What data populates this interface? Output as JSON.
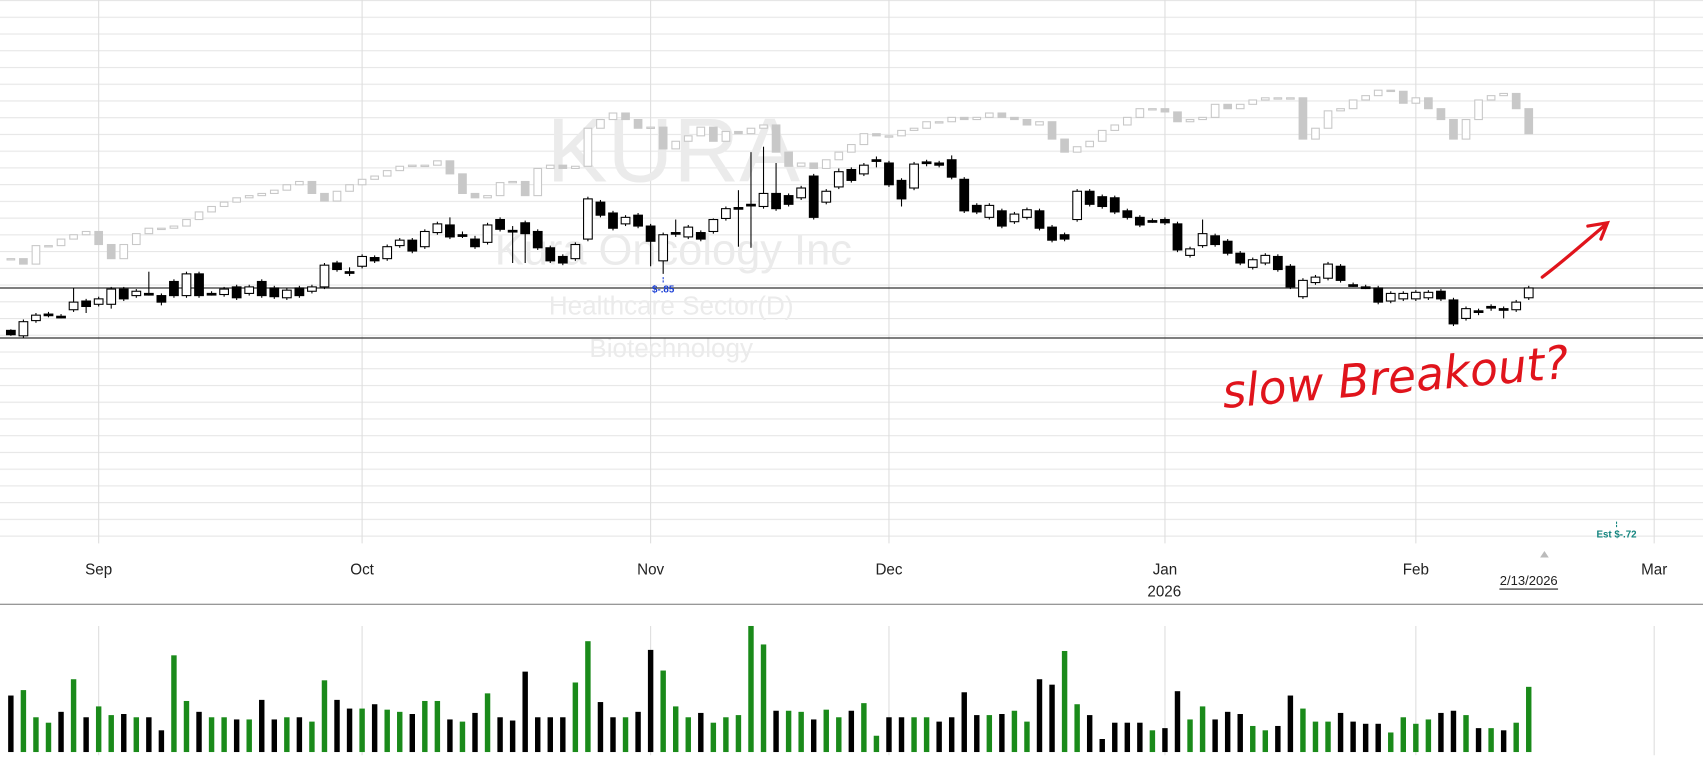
{
  "chart_data": {
    "type": "candlestick",
    "title": "KURA",
    "subtitle": "Kura Oncology Inc",
    "sector": "Healthcare Sector(D)",
    "industry": "Biotechnology",
    "x_year": "2026",
    "xticks": [
      {
        "value": 7,
        "label": "Sep"
      },
      {
        "value": 28,
        "label": "Oct"
      },
      {
        "value": 51,
        "label": "Nov"
      },
      {
        "value": 70,
        "label": "Dec"
      },
      {
        "value": 92,
        "label": "Jan"
      },
      {
        "value": 112,
        "label": "Feb"
      },
      {
        "value": 131,
        "label": "Mar"
      }
    ],
    "date_label": {
      "text": "2/13/2026",
      "x": 121
    },
    "annotations": [
      {
        "text": "$-.85",
        "x": 52
      },
      {
        "text": "Est $-.72",
        "x": 128
      }
    ],
    "note": "slow Breakout?",
    "levels": [
      13.5,
      8.9
    ],
    "up_color": "#ffffff",
    "down_color": "#000000",
    "values": [
      [
        9.6,
        9.7,
        9.1,
        9.2
      ],
      [
        9.1,
        10.6,
        8.9,
        10.4
      ],
      [
        10.5,
        11.2,
        10.3,
        11.0
      ],
      [
        11.1,
        11.3,
        10.8,
        11.0
      ],
      [
        10.9,
        11.1,
        10.7,
        10.9
      ],
      [
        11.5,
        13.5,
        11.3,
        12.2
      ],
      [
        12.3,
        12.5,
        11.2,
        11.8
      ],
      [
        12.0,
        12.7,
        11.8,
        12.5
      ],
      [
        12.0,
        13.6,
        11.6,
        13.4
      ],
      [
        13.4,
        13.6,
        12.3,
        12.5
      ],
      [
        12.8,
        13.4,
        12.6,
        13.2
      ],
      [
        13.0,
        15.0,
        12.8,
        13.0
      ],
      [
        12.8,
        13.0,
        11.9,
        12.2
      ],
      [
        14.1,
        14.3,
        12.6,
        12.8
      ],
      [
        12.8,
        15.0,
        12.6,
        14.8
      ],
      [
        14.8,
        15.0,
        12.6,
        12.8
      ],
      [
        13.0,
        13.2,
        12.8,
        13.0
      ],
      [
        12.9,
        13.6,
        12.7,
        13.4
      ],
      [
        13.6,
        13.8,
        12.4,
        12.6
      ],
      [
        13.0,
        13.8,
        12.8,
        13.6
      ],
      [
        14.1,
        14.3,
        12.6,
        12.8
      ],
      [
        13.5,
        13.7,
        12.5,
        12.7
      ],
      [
        12.6,
        13.5,
        12.4,
        13.3
      ],
      [
        13.5,
        13.7,
        12.6,
        12.8
      ],
      [
        13.2,
        13.8,
        13.0,
        13.6
      ],
      [
        13.6,
        15.8,
        13.4,
        15.6
      ],
      [
        15.8,
        16.0,
        15.0,
        15.2
      ],
      [
        15.0,
        15.4,
        14.6,
        15.0
      ],
      [
        15.5,
        16.6,
        15.3,
        16.4
      ],
      [
        16.3,
        16.5,
        15.8,
        16.0
      ],
      [
        16.2,
        17.5,
        16.0,
        17.3
      ],
      [
        17.4,
        18.1,
        17.2,
        17.9
      ],
      [
        17.9,
        18.1,
        16.7,
        16.9
      ],
      [
        17.3,
        18.9,
        17.1,
        18.7
      ],
      [
        18.6,
        19.6,
        18.4,
        19.4
      ],
      [
        19.3,
        20.0,
        18.0,
        18.2
      ],
      [
        18.4,
        18.7,
        18.1,
        18.4
      ],
      [
        18.0,
        18.3,
        17.1,
        17.3
      ],
      [
        17.7,
        19.5,
        17.5,
        19.3
      ],
      [
        19.8,
        20.0,
        18.7,
        18.9
      ],
      [
        18.8,
        19.2,
        15.8,
        18.8
      ],
      [
        19.5,
        19.7,
        15.8,
        18.5
      ],
      [
        18.7,
        18.9,
        17.0,
        17.2
      ],
      [
        17.2,
        17.4,
        15.8,
        16.0
      ],
      [
        16.4,
        16.6,
        15.6,
        15.8
      ],
      [
        16.2,
        17.7,
        16.0,
        17.5
      ],
      [
        18.0,
        21.9,
        17.8,
        21.7
      ],
      [
        21.4,
        21.6,
        20.0,
        20.2
      ],
      [
        20.4,
        20.6,
        18.8,
        19.0
      ],
      [
        19.4,
        20.2,
        19.2,
        20.0
      ],
      [
        20.2,
        20.4,
        19.0,
        19.2
      ],
      [
        19.2,
        19.4,
        15.5,
        17.8
      ],
      [
        16.0,
        18.6,
        14.8,
        18.4
      ],
      [
        18.6,
        19.8,
        18.2,
        18.6
      ],
      [
        18.2,
        19.3,
        18.0,
        19.1
      ],
      [
        18.6,
        18.8,
        17.8,
        18.0
      ],
      [
        18.7,
        19.9,
        18.5,
        19.8
      ],
      [
        19.9,
        21.0,
        19.7,
        20.8
      ],
      [
        20.9,
        22.5,
        17.3,
        20.9
      ],
      [
        21.2,
        26.0,
        17.2,
        21.2
      ],
      [
        21.0,
        26.5,
        20.8,
        22.2
      ],
      [
        22.2,
        25.0,
        20.6,
        20.8
      ],
      [
        22.0,
        22.2,
        21.0,
        21.2
      ],
      [
        21.8,
        22.9,
        21.6,
        22.7
      ],
      [
        23.8,
        24.0,
        19.8,
        20.0
      ],
      [
        21.4,
        22.6,
        21.2,
        22.4
      ],
      [
        22.8,
        24.5,
        22.6,
        24.2
      ],
      [
        24.4,
        24.6,
        23.2,
        23.4
      ],
      [
        24.0,
        25.0,
        23.8,
        24.8
      ],
      [
        25.3,
        25.6,
        24.6,
        25.3
      ],
      [
        25.0,
        25.2,
        22.8,
        23.0
      ],
      [
        23.4,
        23.6,
        21.0,
        21.7
      ],
      [
        22.7,
        25.1,
        22.5,
        24.9
      ],
      [
        25.1,
        25.3,
        24.7,
        25.1
      ],
      [
        25.0,
        25.2,
        24.6,
        24.8
      ],
      [
        25.3,
        25.7,
        23.5,
        23.7
      ],
      [
        23.5,
        23.7,
        20.4,
        20.6
      ],
      [
        21.1,
        21.3,
        20.3,
        20.5
      ],
      [
        20.0,
        21.3,
        19.8,
        21.1
      ],
      [
        20.6,
        20.8,
        19.0,
        19.2
      ],
      [
        19.6,
        20.5,
        19.4,
        20.3
      ],
      [
        20.0,
        20.9,
        19.8,
        20.7
      ],
      [
        20.6,
        20.8,
        18.8,
        19.0
      ],
      [
        19.1,
        19.3,
        17.7,
        17.9
      ],
      [
        18.4,
        18.6,
        17.8,
        18.0
      ],
      [
        19.8,
        22.6,
        19.6,
        22.4
      ],
      [
        22.4,
        22.6,
        21.0,
        21.2
      ],
      [
        21.9,
        22.1,
        20.8,
        21.0
      ],
      [
        21.8,
        22.0,
        20.3,
        20.5
      ],
      [
        20.6,
        20.8,
        19.8,
        20.0
      ],
      [
        20.0,
        20.2,
        19.1,
        19.3
      ],
      [
        19.7,
        19.9,
        19.5,
        19.7
      ],
      [
        19.8,
        20.0,
        19.3,
        19.5
      ],
      [
        19.4,
        19.6,
        16.8,
        17.0
      ],
      [
        16.5,
        17.3,
        16.3,
        17.1
      ],
      [
        17.4,
        19.8,
        17.2,
        18.5
      ],
      [
        18.3,
        18.5,
        17.3,
        17.5
      ],
      [
        17.8,
        18.0,
        16.5,
        16.7
      ],
      [
        16.7,
        16.9,
        15.6,
        15.8
      ],
      [
        15.4,
        16.3,
        15.2,
        16.1
      ],
      [
        15.8,
        16.7,
        15.6,
        16.5
      ],
      [
        16.4,
        16.6,
        15.0,
        15.2
      ],
      [
        15.5,
        15.7,
        13.4,
        13.6
      ],
      [
        12.7,
        14.4,
        12.5,
        14.2
      ],
      [
        14.0,
        14.7,
        13.8,
        14.5
      ],
      [
        14.4,
        15.9,
        14.2,
        15.7
      ],
      [
        15.5,
        15.7,
        14.0,
        14.2
      ],
      [
        13.8,
        14.0,
        13.6,
        13.8
      ],
      [
        13.6,
        13.8,
        13.4,
        13.6
      ],
      [
        13.5,
        13.7,
        12.0,
        12.2
      ],
      [
        12.3,
        13.2,
        12.1,
        13.0
      ],
      [
        12.5,
        13.2,
        12.3,
        13.0
      ],
      [
        12.5,
        13.3,
        12.3,
        13.1
      ],
      [
        12.6,
        13.3,
        12.4,
        13.1
      ],
      [
        13.2,
        13.4,
        12.3,
        12.5
      ],
      [
        12.4,
        12.6,
        10.0,
        10.2
      ],
      [
        10.7,
        11.8,
        10.5,
        11.6
      ],
      [
        11.4,
        11.6,
        11.0,
        11.4
      ],
      [
        11.8,
        12.0,
        11.4,
        11.8
      ],
      [
        11.6,
        11.8,
        10.7,
        11.6
      ],
      [
        11.5,
        12.4,
        11.3,
        12.2
      ],
      [
        12.6,
        13.7,
        12.4,
        13.5
      ]
    ],
    "overlay": {
      "color": "#c8c8c8",
      "values": [
        16.2,
        15.7,
        17.4,
        17.4,
        18.0,
        18.4,
        18.7,
        17.5,
        16.2,
        17.5,
        18.5,
        19.0,
        19.0,
        19.2,
        19.8,
        20.5,
        21.0,
        21.4,
        21.8,
        22.0,
        22.2,
        22.5,
        23.0,
        23.3,
        22.2,
        21.5,
        22.4,
        23.0,
        23.5,
        23.8,
        24.3,
        24.7,
        24.8,
        24.8,
        25.2,
        24.0,
        22.2,
        21.8,
        22.0,
        23.2,
        23.3,
        22.0,
        24.5,
        24.8,
        24.5,
        24.7,
        28.2,
        29.0,
        29.6,
        29.0,
        28.2,
        28.3,
        26.3,
        27.0,
        27.5,
        28.3,
        27.0,
        27.9,
        27.7,
        28.2,
        28.5,
        26.0,
        24.7,
        25.0,
        24.5,
        25.3,
        26.0,
        26.7,
        27.7,
        27.5,
        27.5,
        28.0,
        28.2,
        28.8,
        28.8,
        29.2,
        29.0,
        29.2,
        29.6,
        29.2,
        29.0,
        28.5,
        28.8,
        27.2,
        26.0,
        26.5,
        27.0,
        28.0,
        28.5,
        29.2,
        30.0,
        30.0,
        29.7,
        28.8,
        29.0,
        29.2,
        30.4,
        30.0,
        30.4,
        30.8,
        31.0,
        31.0,
        31.0,
        27.2,
        28.2,
        29.8,
        30.0,
        30.8,
        31.2,
        31.7,
        31.6,
        30.5,
        31.0,
        30.0,
        29.0,
        27.2,
        29.0,
        30.8,
        31.2,
        31.4,
        30.0,
        27.7
      ]
    },
    "volume": {
      "up_color": "#1a8a1a",
      "down_color": "#000000",
      "values": [
        52,
        57,
        32,
        27,
        37,
        67,
        32,
        42,
        34,
        35,
        32,
        32,
        20,
        89,
        47,
        37,
        32,
        32,
        30,
        30,
        48,
        30,
        32,
        32,
        28,
        66,
        48,
        40,
        40,
        44,
        39,
        37,
        35,
        47,
        47,
        30,
        28,
        36,
        54,
        32,
        29,
        74,
        32,
        32,
        32,
        64,
        102,
        46,
        32,
        32,
        37,
        94,
        75,
        42,
        32,
        36,
        27,
        32,
        34,
        116,
        99,
        38,
        38,
        37,
        30,
        39,
        32,
        38,
        45,
        15,
        32,
        32,
        32,
        32,
        28,
        32,
        55,
        34,
        34,
        35,
        38,
        28,
        67,
        62,
        93,
        44,
        34,
        12,
        27,
        27,
        27,
        20,
        22,
        56,
        30,
        42,
        30,
        37,
        35,
        24,
        20,
        24,
        52,
        40,
        28,
        28,
        36,
        28,
        26,
        26,
        18,
        32,
        26,
        30,
        36,
        38,
        34,
        22,
        22,
        20,
        27,
        60
      ]
    }
  }
}
